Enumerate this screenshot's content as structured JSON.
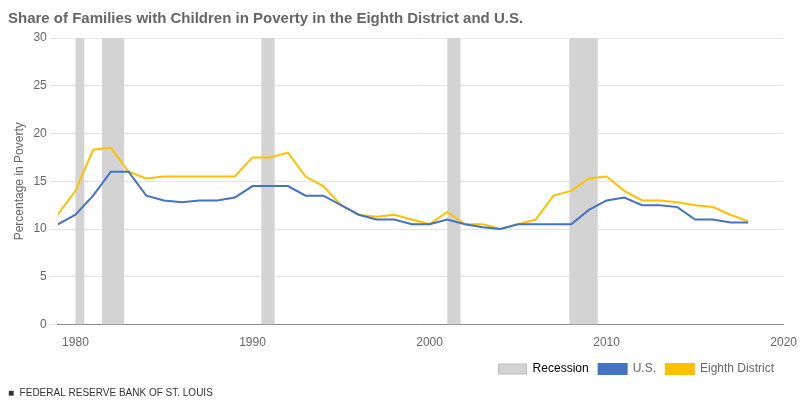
{
  "chart_data": {
    "type": "line",
    "title": "Share of Families with Children in Poverty in the Eighth District and U.S.",
    "y_label": "Percentage in Poverty",
    "footer": "■  FEDERAL RESERVE BANK OF ST. LOUIS",
    "xlim": [
      1979,
      2020
    ],
    "xticks": [
      1980,
      1990,
      2000,
      2010,
      2020
    ],
    "ylim": [
      0,
      30
    ],
    "yticks": [
      0,
      5,
      10,
      15,
      20,
      25,
      30
    ],
    "grid": "y",
    "legend": "lower right",
    "bands": {
      "name": "Recession",
      "color": "#D3D3D3",
      "ranges": [
        [
          1980.0,
          1980.5
        ],
        [
          1981.5,
          1982.75
        ],
        [
          1990.5,
          1991.25
        ],
        [
          2001.0,
          2001.75
        ],
        [
          2007.9,
          2009.5
        ]
      ]
    },
    "x": [
      1979,
      1980,
      1981,
      1982,
      1983,
      1984,
      1985,
      1986,
      1987,
      1988,
      1989,
      1990,
      1991,
      1992,
      1993,
      1994,
      1995,
      1996,
      1997,
      1998,
      1999,
      2000,
      2001,
      2002,
      2003,
      2004,
      2005,
      2006,
      2007,
      2008,
      2009,
      2010,
      2011,
      2012,
      2013,
      2014,
      2015,
      2016,
      2017,
      2018
    ],
    "series": [
      {
        "name": "U.S.",
        "color": "#4472C4",
        "values": [
          10.5,
          11.5,
          13.5,
          16.0,
          16.0,
          13.5,
          13.0,
          12.8,
          13.0,
          13.0,
          13.3,
          14.5,
          14.5,
          14.5,
          13.5,
          13.5,
          12.5,
          11.5,
          11.0,
          11.0,
          10.5,
          10.5,
          11.0,
          10.5,
          10.2,
          10.0,
          10.5,
          10.5,
          10.5,
          10.5,
          12.0,
          13.0,
          13.3,
          12.5,
          12.5,
          12.3,
          11.0,
          11.0,
          10.7,
          10.7
        ]
      },
      {
        "name": "Eighth District",
        "color": "#FFC000",
        "values": [
          11.5,
          14.0,
          18.3,
          18.5,
          16.0,
          15.3,
          15.5,
          15.5,
          15.5,
          15.5,
          15.5,
          17.5,
          17.5,
          18.0,
          15.5,
          14.5,
          12.5,
          11.5,
          11.3,
          11.5,
          11.0,
          10.5,
          11.8,
          10.5,
          10.5,
          10.0,
          10.5,
          11.0,
          13.5,
          14.0,
          15.3,
          15.5,
          14.0,
          13.0,
          13.0,
          12.8,
          12.5,
          12.3,
          11.5,
          10.8
        ]
      }
    ]
  }
}
